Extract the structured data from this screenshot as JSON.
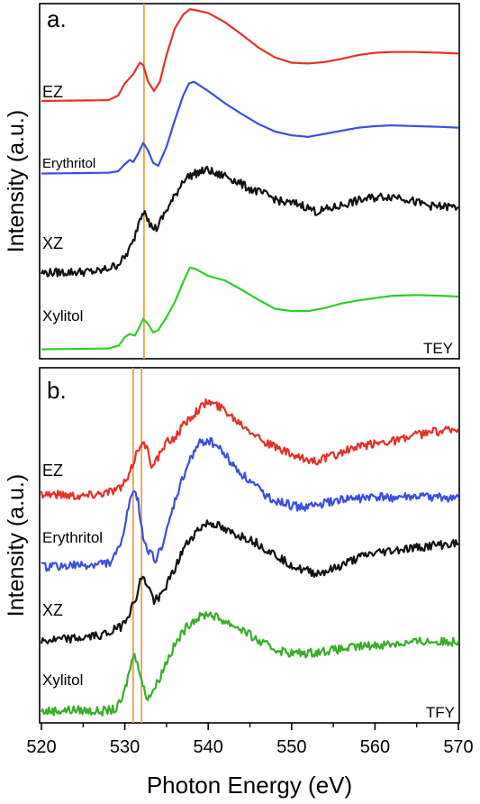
{
  "figure": {
    "xlabel": "Photon Energy (eV)",
    "ylabel": "Intensity (a.u.)",
    "x_ticks": [
      "520",
      "530",
      "540",
      "550",
      "560",
      "570"
    ]
  },
  "chart_data": [
    {
      "type": "line",
      "panel_label": "a.",
      "mode_label": "TEY",
      "xlabel": "Photon Energy (eV)",
      "ylabel": "Intensity (a.u.)",
      "xlim": [
        520,
        570
      ],
      "ylim": [
        0,
        4.6
      ],
      "y_ticks_shown": false,
      "reference_lines_x": [
        532.3
      ],
      "reference_line_color": "#e8a04a",
      "series": [
        {
          "name": "EZ",
          "color": "#e8302a",
          "noisy": false,
          "x": [
            520,
            528,
            529.2,
            530,
            531,
            531.8,
            532.2,
            532.8,
            533.5,
            534.2,
            535,
            536,
            537,
            537.8,
            538.4,
            540,
            542,
            544,
            546,
            548,
            550,
            552,
            554,
            556,
            558,
            560,
            562,
            565,
            568,
            570
          ],
          "y": [
            3.35,
            3.36,
            3.42,
            3.58,
            3.7,
            3.85,
            3.82,
            3.6,
            3.48,
            3.6,
            3.95,
            4.3,
            4.48,
            4.55,
            4.54,
            4.5,
            4.38,
            4.22,
            4.05,
            3.92,
            3.85,
            3.84,
            3.86,
            3.9,
            3.95,
            3.98,
            3.99,
            3.99,
            3.98,
            3.97
          ]
        },
        {
          "name": "Erythritol",
          "color": "#3b4ee0",
          "noisy": false,
          "x": [
            520,
            528,
            529.2,
            530,
            530.6,
            531,
            531.6,
            532.2,
            532.8,
            533.4,
            534,
            535,
            536,
            537,
            537.7,
            538.3,
            540,
            542,
            544,
            546,
            548,
            550,
            552,
            554,
            556,
            558,
            560,
            562,
            565,
            568,
            570
          ],
          "y": [
            2.4,
            2.41,
            2.43,
            2.52,
            2.58,
            2.55,
            2.66,
            2.8,
            2.7,
            2.54,
            2.5,
            2.75,
            3.1,
            3.42,
            3.58,
            3.6,
            3.48,
            3.32,
            3.18,
            3.05,
            2.95,
            2.9,
            2.88,
            2.92,
            2.96,
            3.0,
            3.02,
            3.03,
            3.02,
            3.01,
            3.0
          ]
        },
        {
          "name": "XZ",
          "color": "#111111",
          "noisy": true,
          "x": [
            520,
            527,
            529,
            530,
            531,
            531.8,
            532.4,
            533,
            533.8,
            535,
            536,
            537,
            538,
            539,
            540,
            541,
            542,
            543,
            545,
            547,
            549,
            551,
            553,
            555,
            557,
            559,
            561,
            563,
            565,
            567,
            570
          ],
          "y": [
            1.1,
            1.12,
            1.2,
            1.3,
            1.5,
            1.82,
            1.95,
            1.72,
            1.68,
            1.92,
            2.1,
            2.32,
            2.38,
            2.42,
            2.45,
            2.38,
            2.38,
            2.32,
            2.2,
            2.12,
            2.02,
            2.0,
            1.9,
            1.95,
            2.02,
            2.07,
            2.1,
            2.1,
            2.02,
            1.97,
            1.96
          ]
        },
        {
          "name": "Xylitol",
          "color": "#2fcf2a",
          "noisy": false,
          "x": [
            520,
            528,
            529.3,
            530,
            530.6,
            531.2,
            531.7,
            532.2,
            532.8,
            533.4,
            534,
            535,
            536,
            537,
            537.8,
            538.5,
            540,
            542,
            544,
            546,
            548,
            550,
            552,
            554,
            556,
            558,
            560,
            562,
            565,
            568,
            570
          ],
          "y": [
            0.1,
            0.11,
            0.15,
            0.26,
            0.3,
            0.28,
            0.38,
            0.5,
            0.43,
            0.32,
            0.35,
            0.52,
            0.72,
            0.98,
            1.17,
            1.15,
            1.06,
            1.0,
            0.88,
            0.75,
            0.63,
            0.6,
            0.6,
            0.64,
            0.7,
            0.74,
            0.77,
            0.8,
            0.81,
            0.8,
            0.79
          ]
        }
      ]
    },
    {
      "type": "line",
      "panel_label": "b.",
      "mode_label": "TFY",
      "xlabel": "Photon Energy (eV)",
      "ylabel": "Intensity (a.u.)",
      "xlim": [
        520,
        570
      ],
      "ylim": [
        0,
        4.4
      ],
      "y_ticks_shown": false,
      "reference_lines_x": [
        531.0,
        532.0
      ],
      "reference_line_color": "#e8a04a",
      "series": [
        {
          "name": "EZ",
          "color": "#e8302a",
          "noisy": true,
          "x": [
            520,
            525,
            528,
            529.5,
            530.5,
            531.2,
            532,
            532.6,
            533.2,
            534,
            535,
            536,
            537,
            538,
            539,
            540,
            541,
            542,
            543,
            545,
            547,
            549,
            551,
            553,
            555,
            557,
            559,
            561,
            563,
            565,
            567,
            570
          ],
          "y": [
            2.85,
            2.82,
            2.87,
            2.92,
            3.05,
            3.3,
            3.5,
            3.42,
            3.22,
            3.3,
            3.48,
            3.55,
            3.7,
            3.82,
            3.92,
            4.0,
            3.95,
            3.9,
            3.8,
            3.65,
            3.48,
            3.38,
            3.28,
            3.26,
            3.32,
            3.4,
            3.45,
            3.5,
            3.52,
            3.58,
            3.62,
            3.66
          ]
        },
        {
          "name": "Erythritol",
          "color": "#3b4ee0",
          "noisy": true,
          "x": [
            520,
            526,
            528.5,
            529.5,
            530.3,
            531,
            531.6,
            532.2,
            533,
            533.8,
            535,
            536,
            537,
            538,
            539,
            540,
            541,
            542,
            543,
            545,
            547,
            549,
            551,
            553,
            555,
            557,
            559,
            561,
            563,
            565,
            568,
            570
          ],
          "y": [
            1.93,
            1.95,
            2.0,
            2.2,
            2.6,
            2.88,
            2.75,
            2.3,
            2.1,
            2.02,
            2.35,
            2.75,
            3.05,
            3.32,
            3.48,
            3.52,
            3.45,
            3.34,
            3.2,
            3.0,
            2.82,
            2.72,
            2.68,
            2.7,
            2.75,
            2.78,
            2.8,
            2.8,
            2.8,
            2.8,
            2.8,
            2.8
          ]
        },
        {
          "name": "XZ",
          "color": "#111111",
          "noisy": true,
          "x": [
            520,
            525,
            528,
            529.5,
            530.5,
            531.2,
            532,
            532.8,
            533.5,
            534.5,
            536,
            537,
            538,
            539,
            540,
            541,
            542,
            543,
            545,
            547,
            549,
            551,
            553,
            555,
            557,
            559,
            561,
            563,
            565,
            567,
            570
          ],
          "y": [
            1.0,
            1.04,
            1.1,
            1.18,
            1.35,
            1.5,
            1.8,
            1.7,
            1.5,
            1.6,
            1.9,
            2.15,
            2.3,
            2.42,
            2.48,
            2.46,
            2.38,
            2.35,
            2.28,
            2.15,
            2.02,
            1.9,
            1.85,
            1.9,
            2.0,
            2.08,
            2.12,
            2.15,
            2.17,
            2.2,
            2.22
          ]
        },
        {
          "name": "Xylitol",
          "color": "#3aad2a",
          "noisy": true,
          "x": [
            520,
            524,
            527,
            529,
            529.8,
            530.5,
            531,
            531.5,
            532,
            532.6,
            533.2,
            534,
            535,
            536,
            537,
            538,
            539,
            540,
            541,
            542,
            544,
            546,
            548,
            550,
            552,
            554,
            556,
            558,
            560,
            562,
            564,
            566,
            568,
            570
          ],
          "y": [
            0.12,
            0.14,
            0.12,
            0.15,
            0.3,
            0.6,
            0.82,
            0.78,
            0.5,
            0.3,
            0.35,
            0.5,
            0.75,
            0.95,
            1.12,
            1.25,
            1.3,
            1.35,
            1.3,
            1.25,
            1.15,
            1.0,
            0.9,
            0.85,
            0.85,
            0.88,
            0.9,
            0.93,
            0.95,
            0.97,
            0.98,
            1.0,
            0.99,
            1.0
          ]
        }
      ]
    }
  ]
}
